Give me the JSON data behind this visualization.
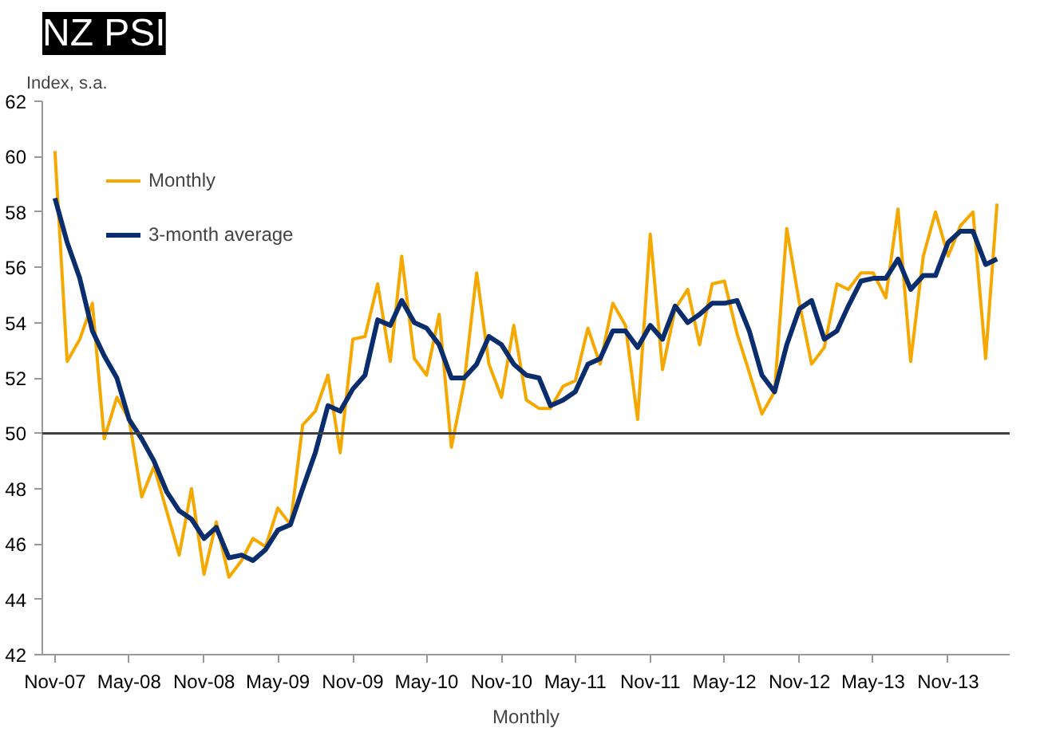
{
  "chart_data": {
    "type": "line",
    "title": "NZ PSI",
    "ylabel": "Index, s.a.",
    "xlabel": "Monthly",
    "x": [
      "2007-11",
      "2007-12",
      "2008-01",
      "2008-02",
      "2008-03",
      "2008-04",
      "2008-05",
      "2008-06",
      "2008-07",
      "2008-08",
      "2008-09",
      "2008-10",
      "2008-11",
      "2008-12",
      "2009-01",
      "2009-02",
      "2009-03",
      "2009-04",
      "2009-05",
      "2009-06",
      "2009-07",
      "2009-08",
      "2009-09",
      "2009-10",
      "2009-11",
      "2009-12",
      "2010-01",
      "2010-02",
      "2010-03",
      "2010-04",
      "2010-05",
      "2010-06",
      "2010-07",
      "2010-08",
      "2010-09",
      "2010-10",
      "2010-11",
      "2010-12",
      "2011-01",
      "2011-02",
      "2011-03",
      "2011-04",
      "2011-05",
      "2011-06",
      "2011-07",
      "2011-08",
      "2011-09",
      "2011-10",
      "2011-11",
      "2011-12",
      "2012-01",
      "2012-02",
      "2012-03",
      "2012-04",
      "2012-05",
      "2012-06",
      "2012-07",
      "2012-08",
      "2012-09",
      "2012-10",
      "2012-11",
      "2012-12",
      "2013-01",
      "2013-02",
      "2013-03",
      "2013-04",
      "2013-05",
      "2013-06",
      "2013-07",
      "2013-08",
      "2013-09",
      "2013-10",
      "2013-11",
      "2013-12",
      "2014-01",
      "2014-02",
      "2014-03"
    ],
    "series": [
      {
        "name": "Monthly",
        "color": "#f5a800",
        "values": [
          60.2,
          52.6,
          53.4,
          54.7,
          49.8,
          51.3,
          50.5,
          47.7,
          48.8,
          47.2,
          45.6,
          48.0,
          44.9,
          46.8,
          44.8,
          45.4,
          46.2,
          45.9,
          47.3,
          46.7,
          50.3,
          50.8,
          52.1,
          49.3,
          53.4,
          53.5,
          55.4,
          52.6,
          56.4,
          52.7,
          52.1,
          54.3,
          49.5,
          51.8,
          55.8,
          52.5,
          51.3,
          53.9,
          51.2,
          50.9,
          50.9,
          51.7,
          51.9,
          53.8,
          52.5,
          54.7,
          53.9,
          50.5,
          57.2,
          52.3,
          54.5,
          55.2,
          53.2,
          55.4,
          55.5,
          53.6,
          52.2,
          50.7,
          51.5,
          57.4,
          54.7,
          52.5,
          53.1,
          55.4,
          55.2,
          55.8,
          55.8,
          54.9,
          58.1,
          52.6,
          56.4,
          58.0,
          56.4,
          57.5,
          58.0,
          52.7,
          58.3
        ]
      },
      {
        "name": "3-month average",
        "color": "#0a2d6e",
        "values": [
          58.5,
          56.9,
          55.6,
          53.7,
          52.8,
          52.0,
          50.5,
          49.8,
          49.0,
          47.9,
          47.2,
          46.9,
          46.2,
          46.6,
          45.5,
          45.6,
          45.4,
          45.8,
          46.5,
          46.7,
          48.0,
          49.3,
          51.0,
          50.8,
          51.6,
          52.1,
          54.1,
          53.9,
          54.8,
          54.0,
          53.8,
          53.2,
          52.0,
          52.0,
          52.5,
          53.5,
          53.2,
          52.5,
          52.1,
          52.0,
          51.0,
          51.2,
          51.5,
          52.5,
          52.7,
          53.7,
          53.7,
          53.1,
          53.9,
          53.4,
          54.6,
          54.0,
          54.3,
          54.7,
          54.7,
          54.8,
          53.7,
          52.1,
          51.5,
          53.2,
          54.5,
          54.8,
          53.4,
          53.7,
          54.6,
          55.5,
          55.6,
          55.6,
          56.3,
          55.2,
          55.7,
          55.7,
          56.9,
          57.3,
          57.3,
          56.1,
          56.3
        ]
      }
    ],
    "xlim": [
      "2007-10",
      "2014-04"
    ],
    "xticks": [
      {
        "value": "2007-11",
        "label": "Nov-07"
      },
      {
        "value": "2008-05",
        "label": "May-08"
      },
      {
        "value": "2008-11",
        "label": "Nov-08"
      },
      {
        "value": "2009-05",
        "label": "May-09"
      },
      {
        "value": "2009-11",
        "label": "Nov-09"
      },
      {
        "value": "2010-05",
        "label": "May-10"
      },
      {
        "value": "2010-11",
        "label": "Nov-10"
      },
      {
        "value": "2011-05",
        "label": "May-11"
      },
      {
        "value": "2011-11",
        "label": "Nov-11"
      },
      {
        "value": "2012-05",
        "label": "May-12"
      },
      {
        "value": "2012-11",
        "label": "Nov-12"
      },
      {
        "value": "2013-05",
        "label": "May-13"
      },
      {
        "value": "2013-11",
        "label": "Nov-13"
      }
    ],
    "ylim": [
      42,
      62
    ],
    "yticks": [
      42,
      44,
      46,
      48,
      50,
      52,
      54,
      56,
      58,
      60,
      62
    ],
    "ref_lines": [
      {
        "axis": "y",
        "value": 50,
        "color": "#404040"
      }
    ],
    "grid": false,
    "legend": "top left",
    "marker": "none",
    "line_style": "solid"
  }
}
